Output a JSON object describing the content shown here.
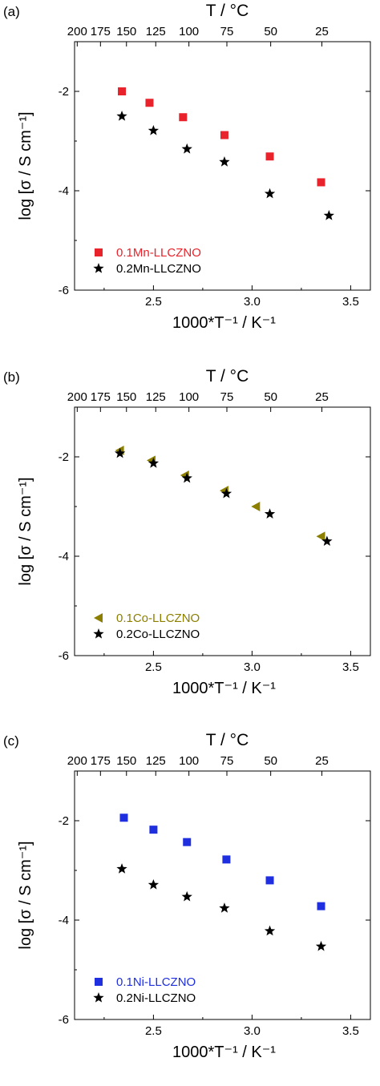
{
  "chart_data": [
    {
      "type": "scatter",
      "panel_label": "(a)",
      "top_axis": {
        "label": "T / °C",
        "ticks": [
          "200",
          "175",
          "150",
          "125",
          "100",
          "75",
          "50",
          "25"
        ]
      },
      "xlabel": "1000*T⁻¹ / K⁻¹",
      "ylabel": "log [σ / S cm⁻¹]",
      "xlim": [
        2.1,
        3.6
      ],
      "ylim": [
        -6,
        -1
      ],
      "x_ticks": [
        2.5,
        3.0,
        3.5
      ],
      "y_ticks": [
        -2,
        -4,
        -6
      ],
      "legend_position": "bottom-left",
      "series": [
        {
          "name": "0.1Mn-LLCZNO",
          "marker": "square",
          "color": "#e8232b",
          "x": [
            2.34,
            2.48,
            2.65,
            2.86,
            3.09,
            3.35
          ],
          "y": [
            -2.0,
            -2.23,
            -2.52,
            -2.88,
            -3.31,
            -3.83
          ]
        },
        {
          "name": "0.2Mn-LLCZNO",
          "marker": "star",
          "color": "#000000",
          "x": [
            2.34,
            2.5,
            2.67,
            2.86,
            3.09,
            3.39
          ],
          "y": [
            -2.5,
            -2.79,
            -3.16,
            -3.42,
            -4.06,
            -4.5
          ]
        }
      ]
    },
    {
      "type": "scatter",
      "panel_label": "(b)",
      "top_axis": {
        "label": "T / °C",
        "ticks": [
          "200",
          "175",
          "150",
          "125",
          "100",
          "75",
          "50",
          "25"
        ]
      },
      "xlabel": "1000*T⁻¹ / K⁻¹",
      "ylabel": "log [σ / S cm⁻¹]",
      "xlim": [
        2.1,
        3.6
      ],
      "ylim": [
        -6,
        -1
      ],
      "x_ticks": [
        2.5,
        3.0,
        3.5
      ],
      "y_ticks": [
        -2,
        -4,
        -6
      ],
      "legend_position": "bottom-left",
      "series": [
        {
          "name": "0.1Co-LLCZNO",
          "marker": "triangle-left",
          "color": "#8c7f00",
          "x": [
            2.33,
            2.49,
            2.66,
            2.86,
            3.02,
            3.35
          ],
          "y": [
            -1.87,
            -2.07,
            -2.37,
            -2.68,
            -3.0,
            -3.6
          ]
        },
        {
          "name": "0.2Co-LLCZNO",
          "marker": "star",
          "color": "#000000",
          "x": [
            2.33,
            2.5,
            2.67,
            2.87,
            3.09,
            3.38
          ],
          "y": [
            -1.93,
            -2.13,
            -2.43,
            -2.74,
            -3.15,
            -3.7
          ]
        }
      ]
    },
    {
      "type": "scatter",
      "panel_label": "(c)",
      "top_axis": {
        "label": "T / °C",
        "ticks": [
          "200",
          "175",
          "150",
          "125",
          "100",
          "75",
          "50",
          "25"
        ]
      },
      "xlabel": "1000*T⁻¹ / K⁻¹",
      "ylabel": "log [σ / S cm⁻¹]",
      "xlim": [
        2.1,
        3.6
      ],
      "ylim": [
        -6,
        -1
      ],
      "x_ticks": [
        2.5,
        3.0,
        3.5
      ],
      "y_ticks": [
        -2,
        -4,
        -6
      ],
      "legend_position": "bottom-left",
      "series": [
        {
          "name": "0.1Ni-LLCZNO",
          "marker": "square",
          "color": "#1f2fe0",
          "x": [
            2.35,
            2.5,
            2.67,
            2.87,
            3.09,
            3.35
          ],
          "y": [
            -1.94,
            -2.18,
            -2.43,
            -2.78,
            -3.2,
            -3.72
          ]
        },
        {
          "name": "0.2Ni-LLCZNO",
          "marker": "star",
          "color": "#000000",
          "x": [
            2.34,
            2.5,
            2.67,
            2.86,
            3.09,
            3.35
          ],
          "y": [
            -2.97,
            -3.29,
            -3.53,
            -3.76,
            -4.22,
            -4.53
          ]
        }
      ]
    }
  ]
}
